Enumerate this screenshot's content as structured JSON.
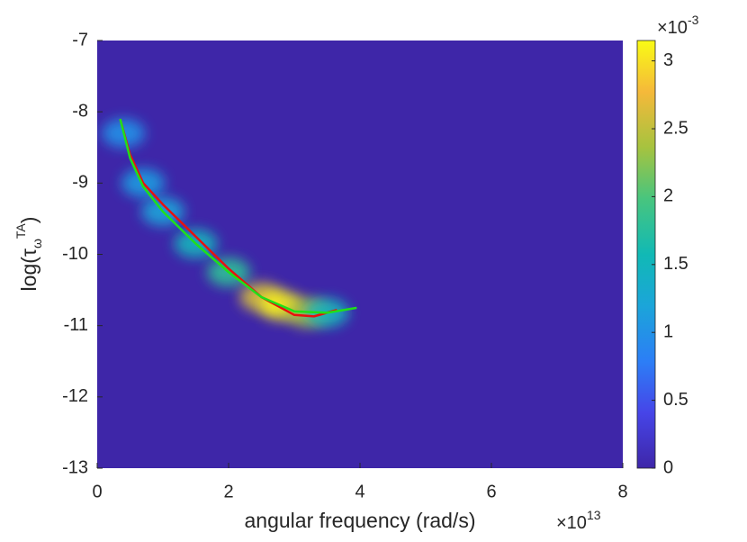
{
  "chart_data": {
    "type": "line",
    "x_label": "angular frequency (rad/s)",
    "y_label": {
      "prefix": "log(τ",
      "subscript": "ω",
      "superscript": "TA",
      "suffix": ")"
    },
    "x_multiplier": {
      "base": "×10",
      "exponent": "13"
    },
    "xlim": [
      0,
      8
    ],
    "xticks": [
      0,
      2,
      4,
      6,
      8
    ],
    "ylim": [
      -13,
      -7
    ],
    "yticks": [
      -13,
      -12,
      -11,
      -10,
      -9,
      -8,
      -7
    ],
    "series": [
      {
        "color": "#e8100e",
        "x": [
          0.35,
          0.5,
          0.7,
          1,
          1.5,
          2,
          2.5,
          3,
          3.3,
          3.65
        ],
        "values": [
          -8.1,
          -8.6,
          -9.0,
          -9.3,
          -9.75,
          -10.2,
          -10.6,
          -10.85,
          -10.87,
          -10.78
        ]
      },
      {
        "color": "#1fe01a",
        "x": [
          0.35,
          0.5,
          0.7,
          1,
          1.5,
          2,
          2.5,
          3,
          3.5,
          3.95
        ],
        "values": [
          -8.1,
          -8.65,
          -9.05,
          -9.4,
          -9.85,
          -10.25,
          -10.6,
          -10.8,
          -10.82,
          -10.75
        ]
      }
    ],
    "density": {
      "x": [
        0.4,
        0.7,
        1,
        1.5,
        2,
        2.5,
        2.8,
        3.2,
        3.5
      ],
      "y": [
        -8.3,
        -9.0,
        -9.4,
        -9.85,
        -10.25,
        -10.6,
        -10.72,
        -10.82,
        -10.82
      ],
      "values": [
        1.0,
        1.1,
        1.2,
        1.5,
        1.8,
        2.6,
        3.1,
        2.4,
        1.5
      ]
    },
    "colorbar": {
      "clim": [
        0,
        3.15
      ],
      "ticks": [
        0,
        0.5,
        1,
        1.5,
        2,
        2.5,
        3
      ],
      "multiplier": {
        "base": "×10",
        "exponent": "-3"
      }
    }
  }
}
